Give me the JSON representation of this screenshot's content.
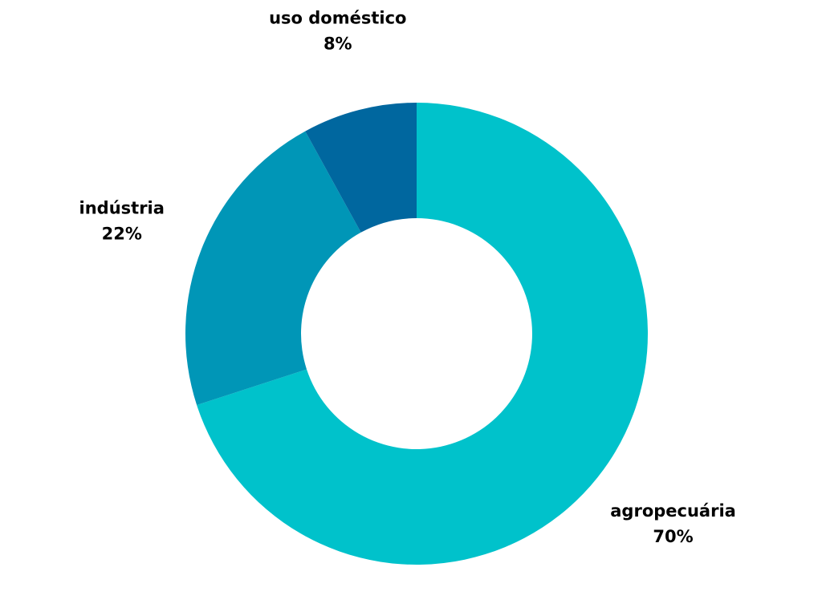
{
  "chart_data": {
    "type": "pie",
    "variant": "donut",
    "title": "",
    "slices": [
      {
        "label": "agropecuária",
        "value": 70,
        "value_label": "70%",
        "color": "#00c2cb"
      },
      {
        "label": "indústria",
        "value": 22,
        "value_label": "22%",
        "color": "#0096b7"
      },
      {
        "label": "uso doméstico",
        "value": 8,
        "value_label": "8%",
        "color": "#00679f"
      }
    ],
    "start": "top",
    "direction": "clockwise",
    "legend": "none",
    "background": "#ffffff"
  }
}
